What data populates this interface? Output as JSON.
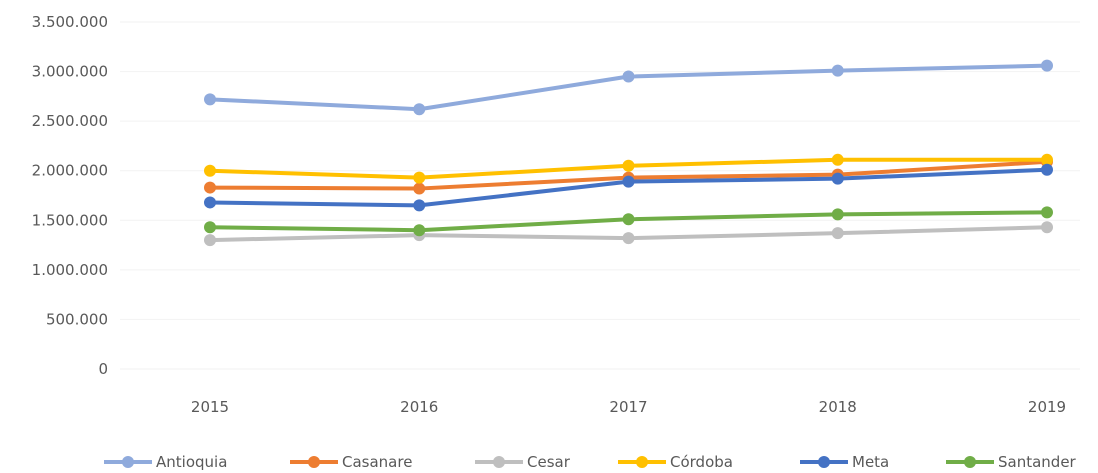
{
  "chart_data": {
    "type": "line",
    "title": "",
    "xlabel": "",
    "ylabel": "",
    "categories": [
      "2015",
      "2016",
      "2017",
      "2018",
      "2019"
    ],
    "ylim": [
      0,
      3500000
    ],
    "y_ticks": [
      0,
      500000,
      1000000,
      1500000,
      2000000,
      2500000,
      3000000,
      3500000
    ],
    "y_tick_labels": [
      "0",
      "500.000",
      "1.000.000",
      "1.500.000",
      "2.000.000",
      "2.500.000",
      "3.000.000",
      "3.500.000"
    ],
    "grid": true,
    "legend_position": "bottom",
    "series": [
      {
        "name": "Antioquia",
        "color": "#8faadc",
        "values": [
          2720000,
          2620000,
          2950000,
          3010000,
          3060000
        ]
      },
      {
        "name": "Casanare",
        "color": "#ed7d31",
        "values": [
          1830000,
          1820000,
          1930000,
          1960000,
          2090000
        ]
      },
      {
        "name": "Cesar",
        "color": "#bfbfbf",
        "values": [
          1300000,
          1350000,
          1320000,
          1370000,
          1430000
        ]
      },
      {
        "name": "Córdoba",
        "color": "#ffc000",
        "values": [
          2000000,
          1930000,
          2050000,
          2110000,
          2110000
        ]
      },
      {
        "name": "Meta",
        "color": "#4472c4",
        "values": [
          1680000,
          1650000,
          1890000,
          1920000,
          2010000
        ]
      },
      {
        "name": "Santander",
        "color": "#70ad47",
        "values": [
          1430000,
          1400000,
          1510000,
          1560000,
          1580000
        ]
      }
    ]
  }
}
